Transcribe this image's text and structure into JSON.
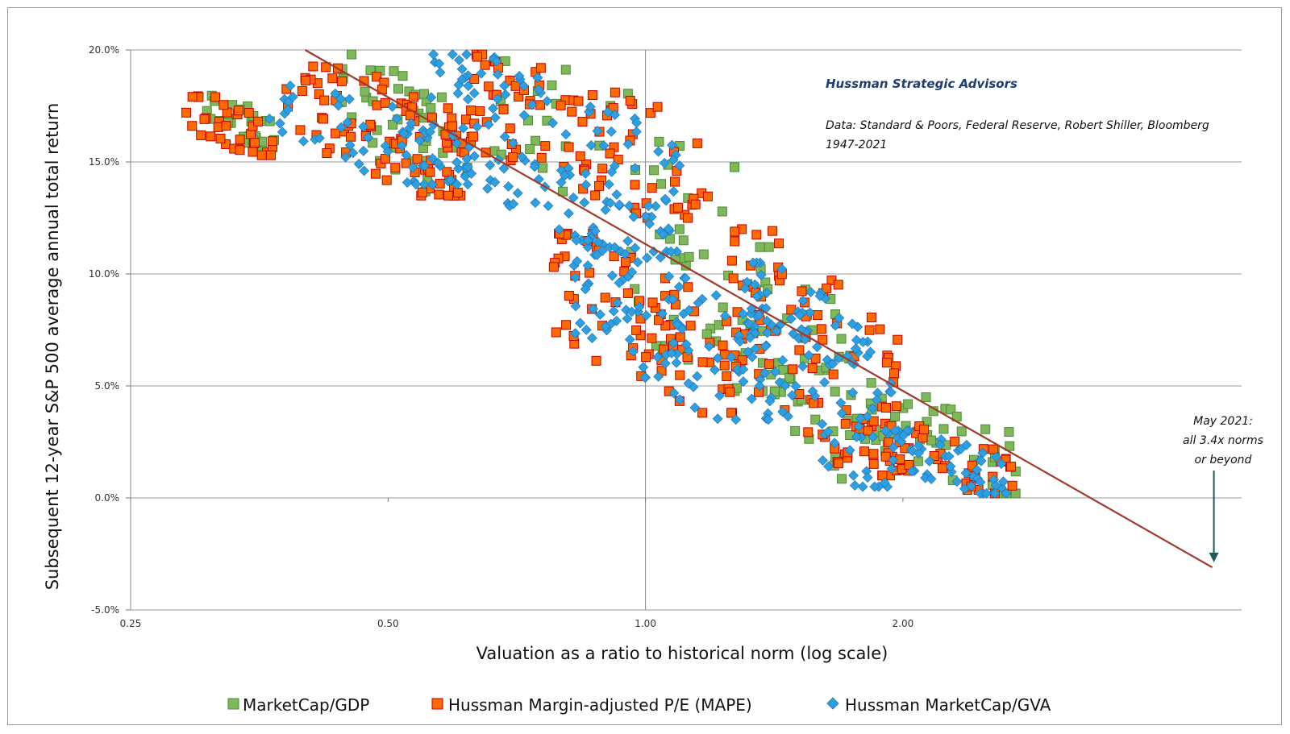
{
  "chart_data": {
    "type": "scatter",
    "title": "",
    "xlabel": "Valuation as a ratio to historical norm (log scale)",
    "ylabel": "Subsequent  12-year S&P 500 average annual total return",
    "x_scale": "log",
    "xlim": [
      0.25,
      5.0
    ],
    "ylim": [
      -5.0,
      20.0
    ],
    "x_ticks": [
      {
        "value": 0.25,
        "label": "0.25"
      },
      {
        "value": 0.5,
        "label": "0.50"
      },
      {
        "value": 1.0,
        "label": "1.00"
      },
      {
        "value": 2.0,
        "label": "2.00"
      }
    ],
    "y_ticks": [
      {
        "value": -5,
        "label": "-5.0%"
      },
      {
        "value": 0,
        "label": "0.0%"
      },
      {
        "value": 5,
        "label": "5.0%"
      },
      {
        "value": 10,
        "label": "10.0%"
      },
      {
        "value": 15,
        "label": "15.0%"
      },
      {
        "value": 20,
        "label": "20.0%"
      }
    ],
    "grid": true,
    "legend_position": "bottom",
    "series": [
      {
        "name": "MarketCap/GDP",
        "marker": "square",
        "color": "#7fb85a",
        "edge": "#4f8a35",
        "clusters": [
          {
            "x0": 0.3,
            "x1": 0.37,
            "ylo": 15.5,
            "yhi": 18.0,
            "n": 28
          },
          {
            "x0": 0.44,
            "x1": 0.62,
            "ylo": 13.5,
            "yhi": 19.8,
            "n": 40
          },
          {
            "x0": 0.62,
            "x1": 1.3,
            "ylo": 12.0,
            "yhi": 19.5,
            "n": 30
          },
          {
            "x0": 0.95,
            "x1": 1.6,
            "ylo": 3.5,
            "yhi": 11.8,
            "n": 45
          },
          {
            "x0": 1.35,
            "x1": 1.85,
            "ylo": 0.5,
            "yhi": 11.2,
            "n": 40
          },
          {
            "x0": 1.85,
            "x1": 2.75,
            "ylo": 0.2,
            "yhi": 4.8,
            "n": 40
          }
        ]
      },
      {
        "name": "Hussman Margin-adjusted P/E (MAPE)",
        "marker": "square",
        "color": "#ff6a00",
        "edge": "#c00000",
        "clusters": [
          {
            "x0": 0.29,
            "x1": 0.37,
            "ylo": 15.3,
            "yhi": 18.0,
            "n": 35
          },
          {
            "x0": 0.38,
            "x1": 0.62,
            "ylo": 13.5,
            "yhi": 19.6,
            "n": 95
          },
          {
            "x0": 0.62,
            "x1": 1.2,
            "ylo": 12.5,
            "yhi": 19.8,
            "n": 90
          },
          {
            "x0": 0.78,
            "x1": 1.3,
            "ylo": 3.8,
            "yhi": 11.8,
            "n": 85
          },
          {
            "x0": 1.25,
            "x1": 2.0,
            "ylo": 1.0,
            "yhi": 12.0,
            "n": 95
          },
          {
            "x0": 1.9,
            "x1": 2.7,
            "ylo": 0.2,
            "yhi": 3.2,
            "n": 40
          }
        ]
      },
      {
        "name": "Hussman MarketCap/GVA",
        "marker": "diamond",
        "color": "#2e9fe0",
        "edge": "#1a6fb0",
        "clusters": [
          {
            "x0": 0.36,
            "x1": 0.62,
            "ylo": 14.0,
            "yhi": 18.5,
            "n": 60
          },
          {
            "x0": 0.55,
            "x1": 1.1,
            "ylo": 11.0,
            "yhi": 19.8,
            "n": 140
          },
          {
            "x0": 0.82,
            "x1": 1.4,
            "ylo": 3.5,
            "yhi": 11.5,
            "n": 110
          },
          {
            "x0": 1.3,
            "x1": 1.95,
            "ylo": 0.5,
            "yhi": 10.5,
            "n": 110
          },
          {
            "x0": 1.9,
            "x1": 2.65,
            "ylo": 0.2,
            "yhi": 3.0,
            "n": 55
          }
        ]
      }
    ],
    "trend_line": {
      "color": "#a03a2a",
      "points": [
        [
          0.4,
          20.0
        ],
        [
          4.6,
          -3.1
        ]
      ]
    },
    "annotations": {
      "source_title": "Hussman Strategic Advisors",
      "source_line1": "Data: Standard & Poors, Federal Reserve, Robert Shiller, Bloomberg",
      "source_line2": "1947-2021",
      "callout_line1": "May 2021:",
      "callout_line2": "all 3.4x norms",
      "callout_line3": "or beyond",
      "callout_arrow_x": 4.6,
      "callout_arrow_y_end": -2.8
    }
  }
}
